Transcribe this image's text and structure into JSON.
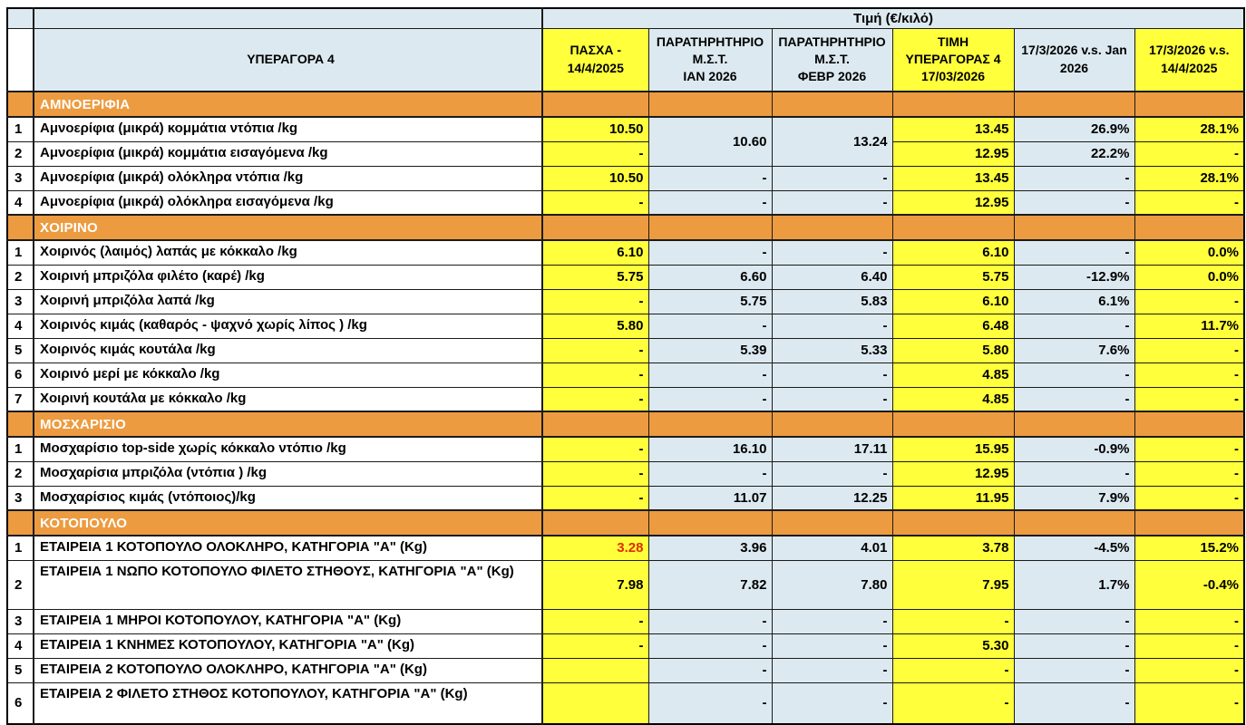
{
  "colors": {
    "yellow": "#ffff3c",
    "light_blue": "#dce9f0",
    "orange": "#ec9b40",
    "red_value": "#e12b00",
    "grid": "#1b1b1b"
  },
  "table": {
    "corner_title": "ΥΠΕΡΑΓΟΡΑ 4",
    "price_band_title": "Τιμή (€/κιλό)",
    "column_bg_pattern": [
      "yellow",
      "blue",
      "blue",
      "yellow",
      "blue",
      "yellow"
    ],
    "columns": [
      {
        "label": "ΠΑΣΧΑ -\n14/4/2025",
        "bg": "yellow"
      },
      {
        "label": "ΠΑΡΑΤΗΡΗΤΗΡΙΟ\nΜ.Σ.Τ.\nΙΑΝ 2026",
        "bg": "blue"
      },
      {
        "label": "ΠΑΡΑΤΗΡΗΤΗΡΙΟ\nΜ.Σ.Τ.\nΦΕΒΡ 2026",
        "bg": "blue"
      },
      {
        "label": "ΤΙΜΗ\nΥΠΕΡΑΓΟΡΑΣ 4\n17/03/2026",
        "bg": "yellow"
      },
      {
        "label": "17/3/2026 v.s. Jan\n2026",
        "bg": "blue"
      },
      {
        "label": "17/3/2026 v.s.\n14/4/2025",
        "bg": "yellow"
      }
    ],
    "sections": [
      {
        "name": "ΑΜΝΟΕΡΙΦΙΑ",
        "rows": [
          {
            "num": "1",
            "label": "Αμνοερίφια (μικρά) κομμάτια ντόπια /kg",
            "cells": [
              {
                "v": "10.50"
              },
              {
                "v": "10.60",
                "rs": 2
              },
              {
                "v": "13.24",
                "rs": 2
              },
              {
                "v": "13.45"
              },
              {
                "v": "26.9%"
              },
              {
                "v": "28.1%"
              }
            ]
          },
          {
            "num": "2",
            "label": "Αμνοερίφια (μικρά) κομμάτια εισαγόμενα /kg",
            "cells": [
              {
                "v": "-"
              },
              {
                "skip": true
              },
              {
                "skip": true
              },
              {
                "v": "12.95"
              },
              {
                "v": "22.2%"
              },
              {
                "v": "-"
              }
            ]
          },
          {
            "num": "3",
            "label": "Αμνοερίφια (μικρά) ολόκληρα ντόπια /kg",
            "cells": [
              {
                "v": "10.50"
              },
              {
                "v": "-"
              },
              {
                "v": "-"
              },
              {
                "v": "13.45"
              },
              {
                "v": "-"
              },
              {
                "v": "28.1%"
              }
            ]
          },
          {
            "num": "4",
            "label": "Αμνοερίφια (μικρά) ολόκληρα εισαγόμενα /kg",
            "cells": [
              {
                "v": "-"
              },
              {
                "v": "-"
              },
              {
                "v": "-"
              },
              {
                "v": "12.95"
              },
              {
                "v": "-"
              },
              {
                "v": "-"
              }
            ]
          }
        ]
      },
      {
        "name": "ΧΟΙΡΙΝΟ",
        "rows": [
          {
            "num": "1",
            "label": "Χοιρινός (λαιμός) λαπάς με κόκκαλο /kg",
            "cells": [
              {
                "v": "6.10"
              },
              {
                "v": "-"
              },
              {
                "v": "-"
              },
              {
                "v": "6.10"
              },
              {
                "v": "-"
              },
              {
                "v": "0.0%"
              }
            ]
          },
          {
            "num": "2",
            "label": "Χοιρινή μπριζόλα φιλέτο (καρέ) /kg",
            "cells": [
              {
                "v": "5.75"
              },
              {
                "v": "6.60"
              },
              {
                "v": "6.40"
              },
              {
                "v": "5.75"
              },
              {
                "v": "-12.9%"
              },
              {
                "v": "0.0%"
              }
            ]
          },
          {
            "num": "3",
            "label": "Χοιρινή μπριζόλα λαπά /kg",
            "cells": [
              {
                "v": "-"
              },
              {
                "v": "5.75"
              },
              {
                "v": "5.83"
              },
              {
                "v": "6.10"
              },
              {
                "v": "6.1%"
              },
              {
                "v": "-"
              }
            ]
          },
          {
            "num": "4",
            "label": "Χοιρινός κιμάς (καθαρός - ψαχνό χωρίς λίπος ) /kg",
            "cells": [
              {
                "v": "5.80"
              },
              {
                "v": "-"
              },
              {
                "v": "-"
              },
              {
                "v": "6.48"
              },
              {
                "v": "-"
              },
              {
                "v": "11.7%"
              }
            ]
          },
          {
            "num": "5",
            "label": "Χοιρινός κιμάς κουτάλα /kg",
            "cells": [
              {
                "v": "-"
              },
              {
                "v": "5.39"
              },
              {
                "v": "5.33"
              },
              {
                "v": "5.80"
              },
              {
                "v": "7.6%"
              },
              {
                "v": "-"
              }
            ]
          },
          {
            "num": "6",
            "label": "Χοιρινό μερί με κόκκαλο /kg",
            "cells": [
              {
                "v": "-"
              },
              {
                "v": "-"
              },
              {
                "v": "-"
              },
              {
                "v": "4.85"
              },
              {
                "v": "-"
              },
              {
                "v": "-"
              }
            ]
          },
          {
            "num": "7",
            "label": "Χοιρινή κουτάλα με κόκκαλο /kg",
            "cells": [
              {
                "v": "-"
              },
              {
                "v": "-"
              },
              {
                "v": "-"
              },
              {
                "v": "4.85"
              },
              {
                "v": "-"
              },
              {
                "v": "-"
              }
            ]
          }
        ]
      },
      {
        "name": "ΜΟΣΧΑΡΙΣΙΟ",
        "rows": [
          {
            "num": "1",
            "label": "Μοσχαρίσιο top-side χωρίς κόκκαλο ντόπιο /kg",
            "cells": [
              {
                "v": "-"
              },
              {
                "v": "16.10"
              },
              {
                "v": "17.11"
              },
              {
                "v": "15.95"
              },
              {
                "v": "-0.9%"
              },
              {
                "v": "-"
              }
            ]
          },
          {
            "num": "2",
            "label": "Μοσχαρίσια μπριζόλα (ντόπια ) /kg",
            "cells": [
              {
                "v": "-"
              },
              {
                "v": "-"
              },
              {
                "v": "-"
              },
              {
                "v": "12.95"
              },
              {
                "v": "-"
              },
              {
                "v": "-"
              }
            ]
          },
          {
            "num": "3",
            "label": "Μοσχαρίσιος κιμάς (ντόποιος)/kg",
            "cells": [
              {
                "v": "-"
              },
              {
                "v": "11.07"
              },
              {
                "v": "12.25"
              },
              {
                "v": "11.95"
              },
              {
                "v": "7.9%"
              },
              {
                "v": "-"
              }
            ]
          }
        ]
      },
      {
        "name": "ΚΟΤΟΠΟΥΛΟ",
        "rows": [
          {
            "num": "1",
            "label": "ΕΤΑΙΡΕΙΑ 1 ΚΟΤΟΠΟΥΛΟ ΟΛΟΚΛΗΡΟ, ΚΑΤΗΓΟΡΙΑ \"Α\" (Kg)",
            "cells": [
              {
                "v": "3.28",
                "red": true
              },
              {
                "v": "3.96"
              },
              {
                "v": "4.01"
              },
              {
                "v": "3.78"
              },
              {
                "v": "-4.5%"
              },
              {
                "v": "15.2%"
              }
            ]
          },
          {
            "num": "2",
            "label": "ΕΤΑΙΡΕΙΑ 1 ΝΩΠΟ ΚΟΤΟΠΟΥΛΟ ΦΙΛΕΤΟ ΣΤΗΘΟΥΣ, ΚΑΤΗΓΟΡΙΑ \"Α\" (Kg)",
            "h": 54,
            "cells": [
              {
                "v": "7.98"
              },
              {
                "v": "7.82"
              },
              {
                "v": "7.80"
              },
              {
                "v": "7.95"
              },
              {
                "v": "1.7%"
              },
              {
                "v": "-0.4%"
              }
            ]
          },
          {
            "num": "3",
            "label": "ΕΤΑΙΡΕΙΑ 1 ΜΗΡΟΙ ΚΟΤΟΠΟΥΛΟΥ, ΚΑΤΗΓΟΡΙΑ \"Α\" (Kg)",
            "cells": [
              {
                "v": "-"
              },
              {
                "v": "-"
              },
              {
                "v": "-"
              },
              {
                "v": "-"
              },
              {
                "v": "-"
              },
              {
                "v": "-"
              }
            ]
          },
          {
            "num": "4",
            "label": "ΕΤΑΙΡΕΙΑ 1 ΚΝΗΜΕΣ ΚΟΤΟΠΟΥΛΟΥ, ΚΑΤΗΓΟΡΙΑ \"Α\" (Kg)",
            "cells": [
              {
                "v": "-"
              },
              {
                "v": "-"
              },
              {
                "v": "-"
              },
              {
                "v": "5.30"
              },
              {
                "v": "-"
              },
              {
                "v": "-"
              }
            ]
          },
          {
            "num": "5",
            "label": "ΕΤΑΙΡΕΙΑ 2 ΚΟΤΟΠΟΥΛΟ ΟΛΟΚΛΗΡΟ, ΚΑΤΗΓΟΡΙΑ \"Α\" (Kg)",
            "cells": [
              {
                "v": ""
              },
              {
                "v": "-"
              },
              {
                "v": "-"
              },
              {
                "v": "-"
              },
              {
                "v": "-"
              },
              {
                "v": "-"
              }
            ]
          },
          {
            "num": "6",
            "label": "ΕΤΑΙΡΕΙΑ 2 ΦΙΛΕΤΟ ΣΤΗΘΟΣ ΚΟΤΟΠΟΥΛΟΥ, ΚΑΤΗΓΟΡΙΑ \"Α\" (Kg)",
            "h": 46,
            "cells": [
              {
                "v": ""
              },
              {
                "v": "-"
              },
              {
                "v": "-"
              },
              {
                "v": "-"
              },
              {
                "v": "-"
              },
              {
                "v": "-"
              }
            ]
          }
        ]
      }
    ]
  }
}
